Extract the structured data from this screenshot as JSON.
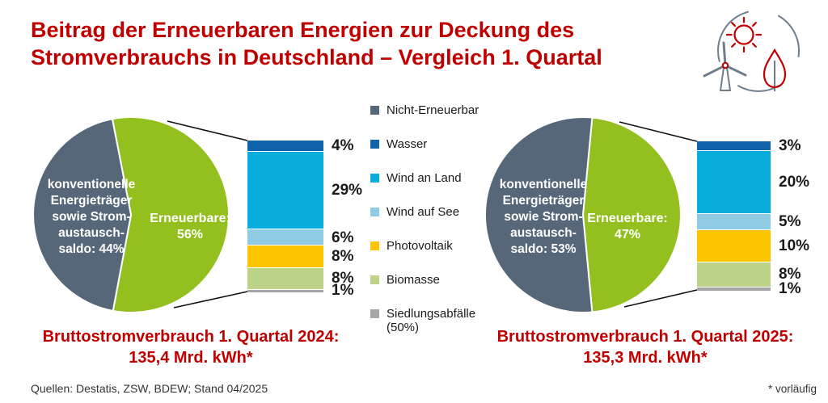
{
  "title": "Beitrag der Erneuerbaren Energien zur Deckung des\nStromverbrauchs in Deutschland – Vergleich 1. Quartal",
  "colors": {
    "accent_red": "#C00000",
    "non_renewable_gray": "#566779",
    "renewable_green": "#93C01F",
    "icon_gray": "#6f7e8c",
    "text_dark": "#1a1a1a"
  },
  "legend": {
    "items": [
      {
        "label": "Nicht-Erneuerbar",
        "color": "#566779"
      },
      {
        "label": "Wasser",
        "color": "#0F63A9"
      },
      {
        "label": "Wind an Land",
        "color": "#09AEDC"
      },
      {
        "label": "Wind auf See",
        "color": "#8FCCE4"
      },
      {
        "label": "Photovoltaik",
        "color": "#FDC500"
      },
      {
        "label": "Biomasse",
        "color": "#BDD38A"
      },
      {
        "label": "Siedlungsabfälle\n(50%)",
        "color": "#A6A6A6"
      }
    ]
  },
  "chart_data": [
    {
      "type": "pie",
      "period": "1. Quartal 2024",
      "caption": "Bruttostromverbrauch 1. Quartal 2024:\n135,4 Mrd. kWh*",
      "slices": [
        {
          "name": "konventionelle Energieträger sowie Stromaustauschsaldo",
          "label": "konventionelle\nEnergieträger\nsowie Strom-\naustausch-\nsaldo: 44%",
          "value": 44,
          "color": "#566779"
        },
        {
          "name": "Erneuerbare",
          "label": "Erneuerbare:\n56%",
          "value": 56,
          "color": "#93C01F"
        }
      ],
      "breakdown": {
        "type": "bar",
        "categories": [
          "Wasser",
          "Wind an Land",
          "Wind auf See",
          "Photovoltaik",
          "Biomasse",
          "Siedlungsabfälle"
        ],
        "values": [
          4,
          29,
          6,
          8,
          8,
          1
        ],
        "colors": [
          "#0F63A9",
          "#09AEDC",
          "#8FCCE4",
          "#FDC500",
          "#BDD38A",
          "#A6A6A6"
        ],
        "unit": "%"
      }
    },
    {
      "type": "pie",
      "period": "1. Quartal 2025",
      "caption": "Bruttostromverbrauch 1. Quartal 2025:\n135,3 Mrd. kWh*",
      "slices": [
        {
          "name": "konventionelle Energieträger sowie Stromaustauschsaldo",
          "label": "konventionelle\nEnergieträger\nsowie Strom-\naustausch-\nsaldo: 53%",
          "value": 53,
          "color": "#566779"
        },
        {
          "name": "Erneuerbare",
          "label": "Erneuerbare:\n47%",
          "value": 47,
          "color": "#93C01F"
        }
      ],
      "breakdown": {
        "type": "bar",
        "categories": [
          "Wasser",
          "Wind an Land",
          "Wind auf See",
          "Photovoltaik",
          "Biomasse",
          "Siedlungsabfälle"
        ],
        "values": [
          3,
          20,
          5,
          10,
          8,
          1
        ],
        "colors": [
          "#0F63A9",
          "#09AEDC",
          "#8FCCE4",
          "#FDC500",
          "#BDD38A",
          "#A6A6A6"
        ],
        "unit": "%"
      }
    }
  ],
  "footer": {
    "sources": "Quellen: Destatis, ZSW, BDEW; Stand 04/2025",
    "note": "* vorläufig"
  }
}
